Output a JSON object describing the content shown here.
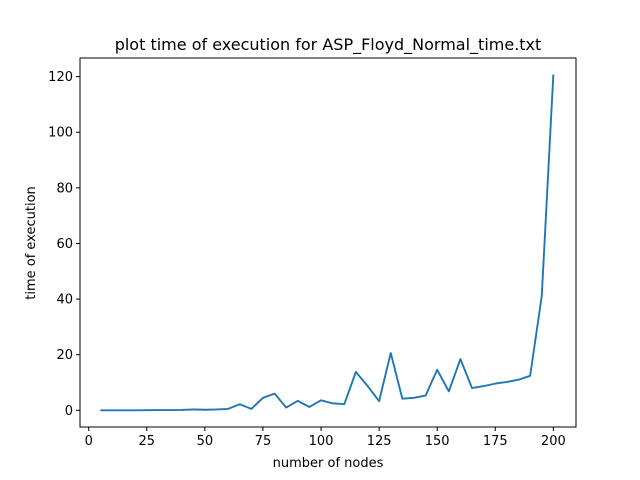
{
  "chart_data": {
    "type": "line",
    "title": "plot time of execution for ASP_Floyd_Normal_time.txt",
    "xlabel": "number of nodes",
    "ylabel": "time of execution",
    "xlim": [
      -3.75,
      209.75
    ],
    "ylim": [
      -6.0,
      126.7
    ],
    "xticks": [
      0,
      25,
      50,
      75,
      100,
      125,
      150,
      175,
      200
    ],
    "yticks": [
      0,
      20,
      40,
      60,
      80,
      100,
      120
    ],
    "grid": false,
    "color": "#1f77b4",
    "series": [
      {
        "x": [
          5,
          10,
          15,
          20,
          25,
          30,
          35,
          40,
          45,
          50,
          55,
          60,
          65,
          70,
          75,
          80,
          85,
          90,
          95,
          100,
          105,
          110,
          115,
          120,
          125,
          130,
          135,
          140,
          145,
          150,
          155,
          160,
          165,
          170,
          175,
          180,
          185,
          190,
          195,
          200
        ],
        "y": [
          0.0,
          0.0,
          0.0,
          0.0,
          0.05,
          0.1,
          0.1,
          0.15,
          0.3,
          0.2,
          0.3,
          0.5,
          2.2,
          0.5,
          4.5,
          6.0,
          1.0,
          3.4,
          1.2,
          3.6,
          2.5,
          2.2,
          13.8,
          8.8,
          3.3,
          20.6,
          4.2,
          4.5,
          5.3,
          14.6,
          6.8,
          18.4,
          8.0,
          8.7,
          9.6,
          10.2,
          11.0,
          12.4,
          41.0,
          120.8
        ]
      }
    ]
  }
}
